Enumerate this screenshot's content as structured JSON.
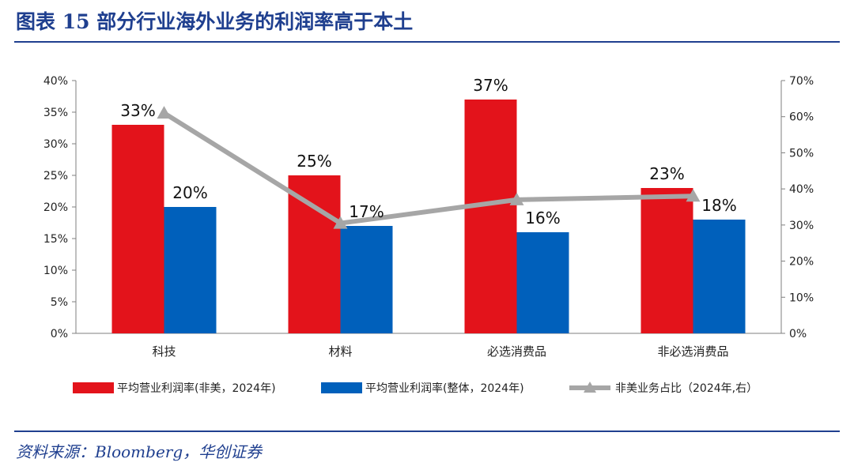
{
  "header": {
    "title": "图表 15  部分行业海外业务的利润率高于本土"
  },
  "footer": {
    "source": "资料来源：Bloomberg，华创证券"
  },
  "colors": {
    "title": "#1F3F8F",
    "red": "#E3131B",
    "blue": "#0060BB",
    "gray": "#A6A6A6"
  },
  "chart_data": {
    "type": "bar",
    "categories": [
      "科技",
      "材料",
      "必选消费品",
      "非必选消费品"
    ],
    "series": [
      {
        "name": "平均营业利润率(非美，2024年)",
        "kind": "bar",
        "axis": "left",
        "color": "#E3131B",
        "values": [
          0.33,
          0.25,
          0.37,
          0.23
        ],
        "labels": [
          "33%",
          "25%",
          "37%",
          "23%"
        ]
      },
      {
        "name": "平均营业利润率(整体，2024年)",
        "kind": "bar",
        "axis": "left",
        "color": "#0060BB",
        "values": [
          0.2,
          0.17,
          0.16,
          0.18
        ],
        "labels": [
          "20%",
          "17%",
          "16%",
          "18%"
        ]
      },
      {
        "name": "非美业务占比（2024年,右）",
        "kind": "line",
        "axis": "right",
        "color": "#A6A6A6",
        "values": [
          0.61,
          0.305,
          0.37,
          0.38
        ]
      }
    ],
    "left_axis": {
      "ylim": [
        0,
        0.4
      ],
      "ticks": [
        "0%",
        "5%",
        "10%",
        "15%",
        "20%",
        "25%",
        "30%",
        "35%",
        "40%"
      ]
    },
    "right_axis": {
      "ylim": [
        0,
        0.7
      ],
      "ticks": [
        "0%",
        "10%",
        "20%",
        "30%",
        "40%",
        "50%",
        "60%",
        "70%"
      ]
    },
    "legend_position": "bottom"
  }
}
